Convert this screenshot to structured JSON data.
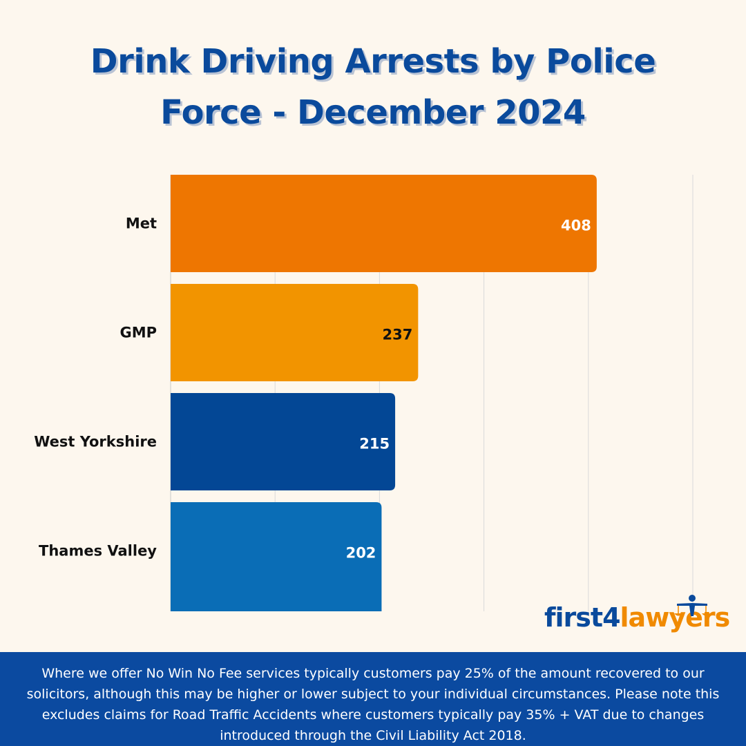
{
  "title": {
    "line1": "Drink Driving Arrests by Police",
    "line2": "Force - December 2024"
  },
  "chart_data": {
    "type": "bar",
    "orientation": "horizontal",
    "title": "Drink Driving Arrests by Police Force - December 2024",
    "categories": [
      "Met",
      "GMP",
      "West Yorkshire",
      "Thames Valley"
    ],
    "values": [
      408,
      237,
      215,
      202
    ],
    "colors": [
      "#ee7601",
      "#f29400",
      "#034795",
      "#0a6db6"
    ],
    "label_colors": [
      "#ffffff",
      "#111111",
      "#ffffff",
      "#ffffff"
    ],
    "xlim": [
      0,
      500
    ],
    "grid": true,
    "xlabel": "",
    "ylabel": ""
  },
  "logo": {
    "part1": "first4",
    "part2": "lawyers",
    "icon": "scales-of-justice-person-icon"
  },
  "footer": {
    "disclaimer": "Where we offer No Win No Fee services typically customers pay 25% of the amount recovered to our solicitors, although this may be higher or lower subject to your individual circumstances. Please note this excludes claims for Road Traffic Accidents where customers typically pay 35% + VAT due to changes introduced through the Civil Liability Act 2018."
  }
}
